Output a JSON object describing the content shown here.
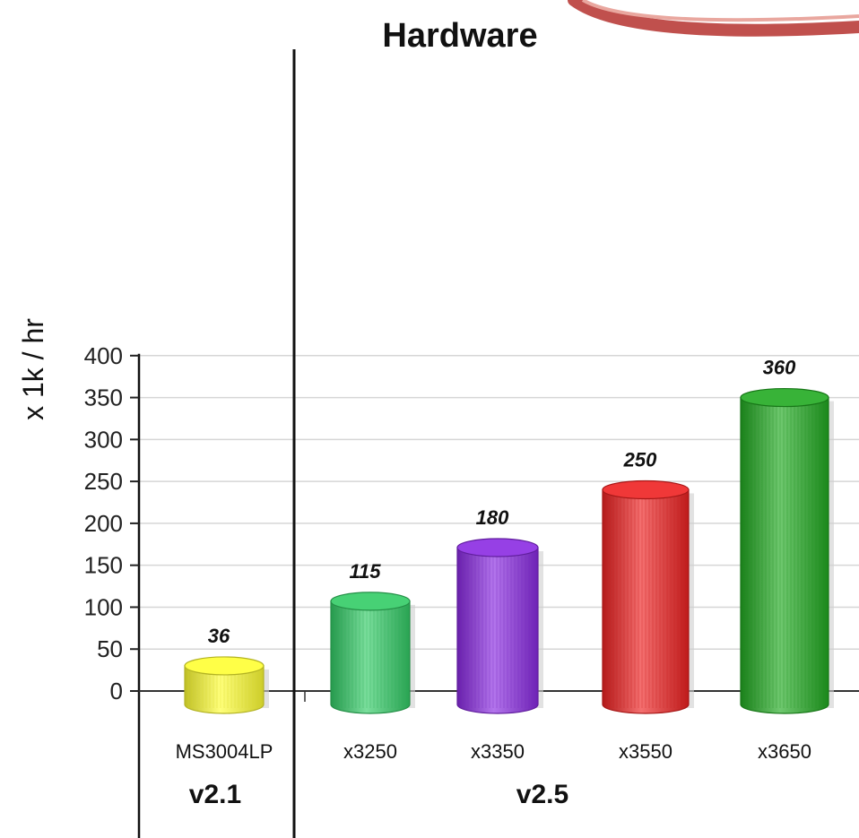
{
  "chart_data": {
    "type": "bar",
    "title": "Hardware",
    "xlabel": "",
    "ylabel": "x 1k / hr",
    "ylim": [
      0,
      400
    ],
    "yticks": [
      0,
      50,
      100,
      150,
      200,
      250,
      300,
      350,
      400
    ],
    "grid": true,
    "categories": [
      "MS3004LP",
      "x3250",
      "x3350",
      "x3550",
      "x3650"
    ],
    "values": [
      36,
      115,
      180,
      250,
      360
    ],
    "bar_heights": [
      30,
      107,
      171,
      240,
      350
    ],
    "colors": [
      "#ffff33",
      "#33cc66",
      "#8a2be2",
      "#ee2222",
      "#22aa22"
    ],
    "groups": [
      {
        "label": "v2.1",
        "categories": [
          "MS3004LP"
        ]
      },
      {
        "label": "v2.5",
        "categories": [
          "x3250",
          "x3350",
          "x3550",
          "x3650"
        ]
      }
    ]
  },
  "decoration": {
    "ring_color": "#c0504d"
  }
}
